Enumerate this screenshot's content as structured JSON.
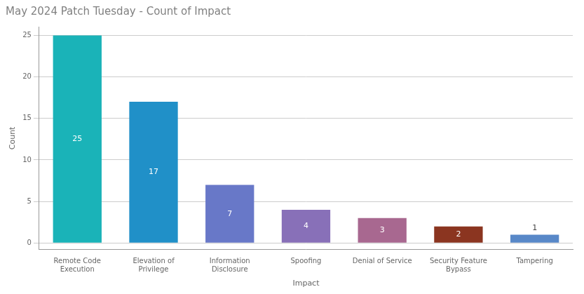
{
  "chart_data": {
    "type": "bar",
    "title": "May 2024 Patch Tuesday - Count of Impact",
    "xlabel": "Impact",
    "ylabel": "Count",
    "categories": [
      "Remote Code\nExecution",
      "Elevation of\nPrivilege",
      "Information\nDisclosure",
      "Spoofing",
      "Denial of Service",
      "Security Feature\nBypass",
      "Tampering"
    ],
    "values": [
      25,
      17,
      7,
      4,
      3,
      2,
      1
    ],
    "colors": [
      "#1ab3b8",
      "#2090c8",
      "#6878c8",
      "#8870b8",
      "#a86890",
      "#8b3520",
      "#5888c8"
    ],
    "ylim": [
      -0.8,
      26.05
    ],
    "yticks": [
      0,
      5,
      10,
      15,
      20,
      25
    ],
    "grid": true,
    "data_labels": true
  }
}
